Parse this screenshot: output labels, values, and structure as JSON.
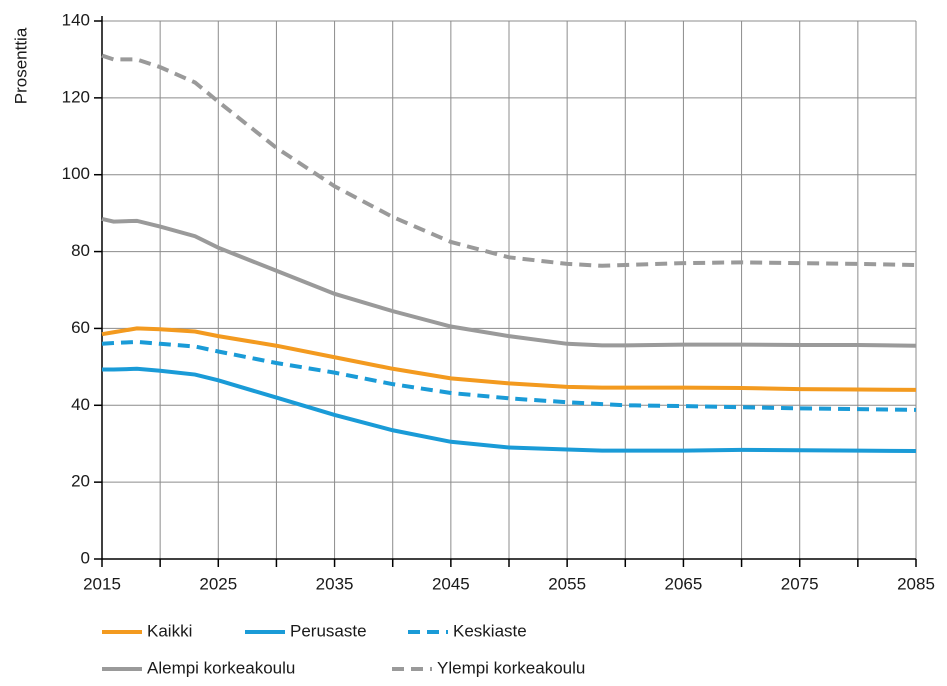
{
  "chart_data": {
    "type": "line",
    "y_label": "Prosenttia",
    "x": [
      2015,
      2016,
      2018,
      2020,
      2023,
      2025,
      2030,
      2035,
      2040,
      2045,
      2050,
      2055,
      2058,
      2060,
      2065,
      2070,
      2075,
      2080,
      2085
    ],
    "series": [
      {
        "name": "Kaikki",
        "color": "#f39a1f",
        "dashed": false,
        "values": [
          58.5,
          59,
          60,
          59.8,
          59.2,
          58,
          55.5,
          52.5,
          49.5,
          47,
          45.7,
          44.8,
          44.6,
          44.6,
          44.6,
          44.5,
          44.2,
          44.1,
          44
        ]
      },
      {
        "name": "Perusaste",
        "color": "#1a9bd7",
        "dashed": false,
        "values": [
          49.3,
          49.3,
          49.5,
          49,
          48,
          46.5,
          42,
          37.5,
          33.5,
          30.5,
          29,
          28.5,
          28.2,
          28.2,
          28.2,
          28.4,
          28.3,
          28.2,
          28.1
        ]
      },
      {
        "name": "Keskiaste",
        "color": "#1a9bd7",
        "dashed": true,
        "values": [
          56,
          56.2,
          56.5,
          56,
          55.3,
          54,
          51,
          48.5,
          45.5,
          43.2,
          41.8,
          40.8,
          40.3,
          40,
          39.8,
          39.5,
          39.2,
          39,
          38.8
        ]
      },
      {
        "name": "Alempi korkeakoulu",
        "color": "#9a9a9a",
        "dashed": false,
        "values": [
          88.5,
          87.8,
          88,
          86.5,
          84,
          81,
          75,
          69,
          64.5,
          60.5,
          58,
          56,
          55.6,
          55.6,
          55.8,
          55.8,
          55.7,
          55.7,
          55.5
        ]
      },
      {
        "name": "Ylempi korkeakoulu",
        "color": "#9a9a9a",
        "dashed": true,
        "values": [
          131,
          130,
          130,
          128,
          124,
          119,
          107,
          97,
          89,
          82.5,
          78.5,
          76.8,
          76.3,
          76.5,
          77,
          77.2,
          77,
          76.8,
          76.5
        ]
      }
    ],
    "xlim": [
      2015,
      2085
    ],
    "xticks": [
      2015,
      2025,
      2035,
      2045,
      2055,
      2065,
      2075,
      2085
    ],
    "x_minor_ticks": [
      2020,
      2030,
      2040,
      2050,
      2060,
      2070,
      2080
    ],
    "ylim": [
      0,
      140
    ],
    "yticks": [
      0,
      20,
      40,
      60,
      80,
      100,
      120,
      140
    ],
    "grid": true,
    "legend": "bottom"
  }
}
